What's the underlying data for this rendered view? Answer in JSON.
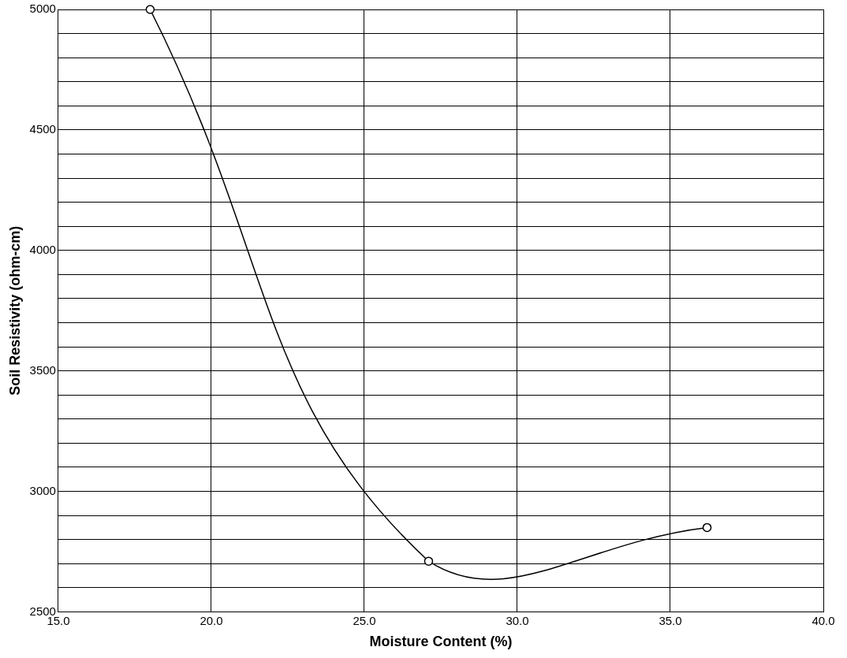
{
  "chart_data": {
    "type": "line",
    "xlabel": "Moisture Content (%)",
    "ylabel": "Soil Resistivity (ohm-cm)",
    "series": [
      {
        "color": "#000000",
        "x": [
          18.0,
          27.1,
          36.2
        ],
        "values": [
          5000,
          2710,
          2850
        ]
      }
    ],
    "marker": "circle",
    "grid": true,
    "legend": false,
    "xlim": [
      15,
      40
    ],
    "xticks": [
      {
        "value": 15,
        "label": "15.0"
      },
      {
        "value": 20,
        "label": "20.0"
      },
      {
        "value": 25,
        "label": "25.0"
      },
      {
        "value": 30,
        "label": "30.0"
      },
      {
        "value": 35,
        "label": "35.0"
      },
      {
        "value": 40,
        "label": "40.0"
      }
    ],
    "ylim": [
      2500,
      5000
    ],
    "yticks": [
      2500,
      {
        "value": 2600,
        "label": null
      },
      {
        "value": 2700,
        "label": null
      },
      {
        "value": 2800,
        "label": null
      },
      {
        "value": 2900,
        "label": null
      },
      3000,
      {
        "value": 3100,
        "label": null
      },
      {
        "value": 3200,
        "label": null
      },
      {
        "value": 3300,
        "label": null
      },
      {
        "value": 3400,
        "label": null
      },
      3500,
      {
        "value": 3600,
        "label": null
      },
      {
        "value": 3700,
        "label": null
      },
      {
        "value": 3800,
        "label": null
      },
      {
        "value": 3900,
        "label": null
      },
      4000,
      {
        "value": 4100,
        "label": null
      },
      {
        "value": 4200,
        "label": null
      },
      {
        "value": 4300,
        "label": null
      },
      {
        "value": 4400,
        "label": null
      },
      4500,
      {
        "value": 4600,
        "label": null
      },
      {
        "value": 4700,
        "label": null
      },
      {
        "value": 4800,
        "label": null
      },
      {
        "value": 4900,
        "label": null
      },
      5000
    ]
  }
}
